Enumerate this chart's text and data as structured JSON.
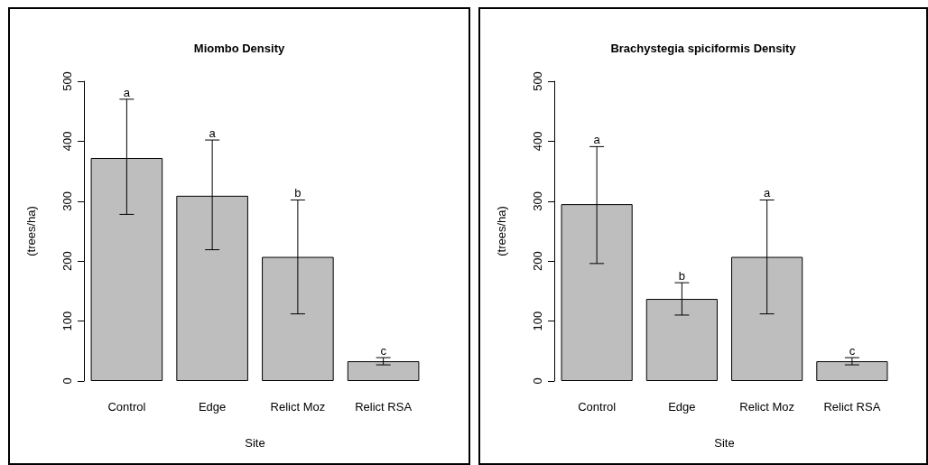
{
  "chart_data": [
    {
      "type": "bar",
      "title": "Miombo Density",
      "xlabel": "Site",
      "ylabel": "(trees/ha)",
      "categories": [
        "Control",
        "Edge",
        "Relict Moz",
        "Relict RSA"
      ],
      "color": "#bebebe",
      "values": [
        372,
        309,
        207,
        33
      ],
      "errors": [
        [
          278,
          470
        ],
        [
          219,
          402
        ],
        [
          112,
          302
        ],
        [
          27,
          39
        ]
      ],
      "ylim": [
        0,
        500
      ],
      "yticks": [
        0,
        100,
        200,
        300,
        400,
        500
      ],
      "grid": false,
      "annotations": [
        {
          "text": "a",
          "x": "Control",
          "y": 470
        },
        {
          "text": "a",
          "x": "Edge",
          "y": 402
        },
        {
          "text": "b",
          "x": "Relict Moz",
          "y": 302
        },
        {
          "text": "c",
          "x": "Relict RSA",
          "y": 39
        }
      ]
    },
    {
      "type": "bar",
      "title": "Brachystegia spiciformis Density",
      "xlabel": "Site",
      "ylabel": "(trees/ha)",
      "categories": [
        "Control",
        "Edge",
        "Relict Moz",
        "Relict RSA"
      ],
      "color": "#bebebe",
      "values": [
        295,
        137,
        207,
        33
      ],
      "errors": [
        [
          196,
          391
        ],
        [
          110,
          164
        ],
        [
          112,
          302
        ],
        [
          27,
          39
        ]
      ],
      "ylim": [
        0,
        500
      ],
      "yticks": [
        0,
        100,
        200,
        300,
        400,
        500
      ],
      "grid": false,
      "annotations": [
        {
          "text": "a",
          "x": "Control",
          "y": 391
        },
        {
          "text": "b",
          "x": "Edge",
          "y": 164
        },
        {
          "text": "a",
          "x": "Relict Moz",
          "y": 302
        },
        {
          "text": "c",
          "x": "Relict RSA",
          "y": 39
        }
      ]
    }
  ]
}
